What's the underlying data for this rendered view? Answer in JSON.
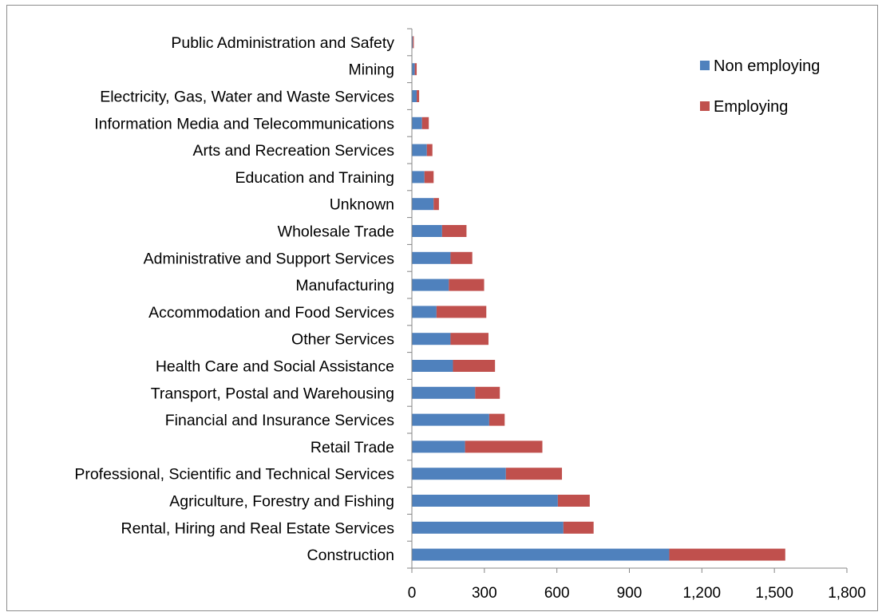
{
  "chart_data": {
    "type": "bar",
    "orientation": "horizontal",
    "stacked": true,
    "categories": [
      "Construction",
      "Rental, Hiring and Real Estate Services",
      "Agriculture, Forestry and Fishing",
      "Professional, Scientific and Technical Services",
      "Retail Trade",
      "Financial and Insurance Services",
      "Transport, Postal and Warehousing",
      "Health Care and Social Assistance",
      "Other Services",
      "Accommodation and Food Services",
      "Manufacturing",
      "Administrative and Support Services",
      "Wholesale Trade",
      "Unknown",
      "Education and Training",
      "Arts and Recreation Services",
      "Information Media and Telecommunications",
      "Electricity, Gas, Water and Waste Services",
      "Mining",
      "Public Administration and Safety"
    ],
    "series": [
      {
        "name": "Non employing",
        "color": "#4f81bd",
        "values": [
          1065,
          627,
          604,
          389,
          220,
          320,
          262,
          170,
          160,
          102,
          153,
          160,
          125,
          90,
          52,
          62,
          42,
          20,
          12,
          4
        ]
      },
      {
        "name": "Employing",
        "color": "#c0504d",
        "values": [
          480,
          125,
          132,
          232,
          320,
          64,
          102,
          174,
          157,
          206,
          146,
          90,
          101,
          22,
          38,
          23,
          28,
          10,
          8,
          4
        ]
      }
    ],
    "xlim": [
      0,
      1800
    ],
    "xticks": [
      "0",
      "300",
      "600",
      "900",
      "1,200",
      "1,500",
      "1,800"
    ],
    "grid": false,
    "legend_position": "top-right"
  }
}
